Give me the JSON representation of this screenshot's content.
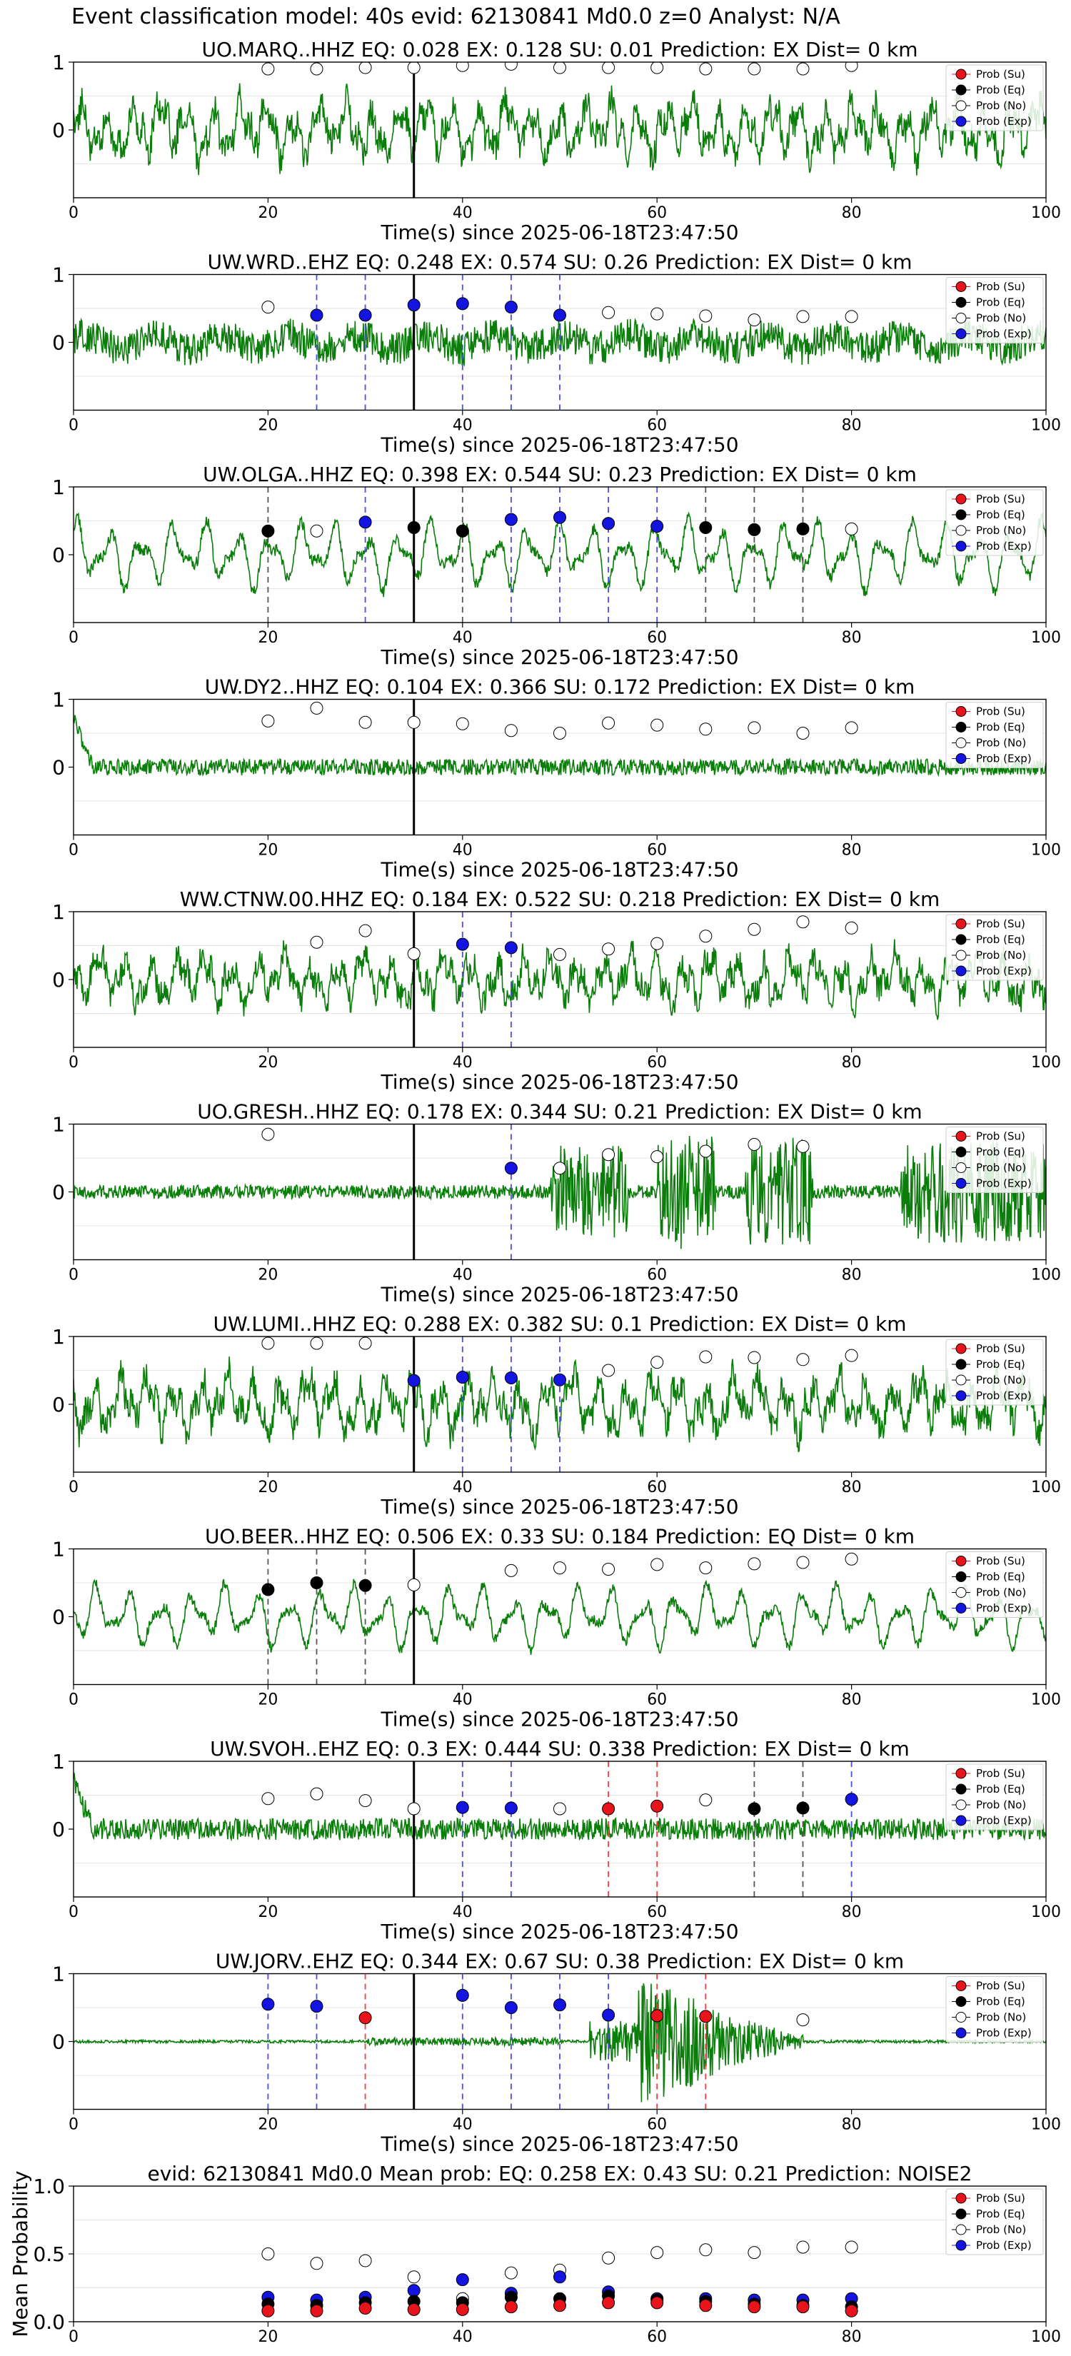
{
  "figure": {
    "suptitle": "Event classification model: 40s evid: 62130841 Md0.0 z=0 Analyst: N/A",
    "legend_entries": [
      {
        "label": "Prob (Su)",
        "color": "#e8141c"
      },
      {
        "label": "Prob (Eq)",
        "color": "#000000"
      },
      {
        "label": "Prob (No)",
        "color": "#ffffff"
      },
      {
        "label": "Prob (Exp)",
        "color": "#1414e0"
      }
    ],
    "colors": {
      "waveform": "#0a7d0a",
      "su": "#e8141c",
      "eq": "#000000",
      "no": "#ffffff",
      "exp": "#1414e0",
      "exp_line": "#4b4bf0",
      "su_line": "#f04040",
      "eq_line": "#555555",
      "event_line": "#000000"
    }
  },
  "chart_data": [
    {
      "type": "line",
      "title": "UO.MARQ..HHZ   EQ: 0.028  EX: 0.128  SU: 0.01   Prediction: EX    Dist= 0 km",
      "xlabel": "Time(s) since 2025-06-18T23:47:50",
      "xlim": [
        0,
        100
      ],
      "ylim": [
        -1,
        1
      ],
      "xticks": [
        0,
        20,
        40,
        60,
        80,
        100
      ],
      "yticks": [
        0,
        1
      ],
      "event_time": 35,
      "grid": true,
      "legend": "upper right",
      "waveform": {
        "style": "broadband",
        "amplitude": 0.45
      },
      "predictions": [
        {
          "t": 20,
          "class": "No",
          "prob": 0.9
        },
        {
          "t": 25,
          "class": "No",
          "prob": 0.9
        },
        {
          "t": 30,
          "class": "No",
          "prob": 0.92
        },
        {
          "t": 35,
          "class": "No",
          "prob": 0.92
        },
        {
          "t": 40,
          "class": "No",
          "prob": 0.95
        },
        {
          "t": 45,
          "class": "No",
          "prob": 0.97
        },
        {
          "t": 50,
          "class": "No",
          "prob": 0.92
        },
        {
          "t": 55,
          "class": "No",
          "prob": 0.92
        },
        {
          "t": 60,
          "class": "No",
          "prob": 0.92
        },
        {
          "t": 65,
          "class": "No",
          "prob": 0.9
        },
        {
          "t": 70,
          "class": "No",
          "prob": 0.9
        },
        {
          "t": 75,
          "class": "No",
          "prob": 0.9
        },
        {
          "t": 80,
          "class": "No",
          "prob": 0.95
        }
      ]
    },
    {
      "type": "line",
      "title": "UW.WRD..EHZ   EQ: 0.248  EX: 0.574  SU: 0.26   Prediction: EX    Dist= 0 km",
      "xlabel": "Time(s) since 2025-06-18T23:47:50",
      "xlim": [
        0,
        100
      ],
      "ylim": [
        -1,
        1
      ],
      "xticks": [
        0,
        20,
        40,
        60,
        80,
        100
      ],
      "yticks": [
        0,
        1
      ],
      "event_time": 35,
      "grid": true,
      "legend": "upper right",
      "waveform": {
        "style": "noise",
        "amplitude": 0.25
      },
      "predictions": [
        {
          "t": 20,
          "class": "No",
          "prob": 0.52
        },
        {
          "t": 25,
          "class": "Exp",
          "prob": 0.4
        },
        {
          "t": 30,
          "class": "Exp",
          "prob": 0.4
        },
        {
          "t": 35,
          "class": "Exp",
          "prob": 0.55
        },
        {
          "t": 40,
          "class": "Exp",
          "prob": 0.57
        },
        {
          "t": 45,
          "class": "Exp",
          "prob": 0.52
        },
        {
          "t": 50,
          "class": "Exp",
          "prob": 0.4
        },
        {
          "t": 55,
          "class": "No",
          "prob": 0.44
        },
        {
          "t": 60,
          "class": "No",
          "prob": 0.42
        },
        {
          "t": 65,
          "class": "No",
          "prob": 0.39
        },
        {
          "t": 70,
          "class": "No",
          "prob": 0.33
        },
        {
          "t": 75,
          "class": "No",
          "prob": 0.38
        },
        {
          "t": 80,
          "class": "No",
          "prob": 0.38
        }
      ]
    },
    {
      "type": "line",
      "title": "UW.OLGA..HHZ   EQ: 0.398  EX: 0.544  SU: 0.23   Prediction: EX    Dist= 0 km",
      "xlabel": "Time(s) since 2025-06-18T23:47:50",
      "xlim": [
        0,
        100
      ],
      "ylim": [
        -1,
        1
      ],
      "xticks": [
        0,
        20,
        40,
        60,
        80,
        100
      ],
      "yticks": [
        0,
        1
      ],
      "event_time": 35,
      "grid": true,
      "legend": "upper right",
      "waveform": {
        "style": "lowfreq",
        "amplitude": 0.5
      },
      "predictions": [
        {
          "t": 20,
          "class": "Eq",
          "prob": 0.35
        },
        {
          "t": 25,
          "class": "No",
          "prob": 0.35
        },
        {
          "t": 30,
          "class": "Exp",
          "prob": 0.48
        },
        {
          "t": 35,
          "class": "Eq",
          "prob": 0.4
        },
        {
          "t": 40,
          "class": "Eq",
          "prob": 0.35
        },
        {
          "t": 45,
          "class": "Exp",
          "prob": 0.52
        },
        {
          "t": 50,
          "class": "Exp",
          "prob": 0.55
        },
        {
          "t": 55,
          "class": "Exp",
          "prob": 0.46
        },
        {
          "t": 60,
          "class": "Exp",
          "prob": 0.42
        },
        {
          "t": 65,
          "class": "Eq",
          "prob": 0.4
        },
        {
          "t": 70,
          "class": "Eq",
          "prob": 0.37
        },
        {
          "t": 75,
          "class": "Eq",
          "prob": 0.38
        },
        {
          "t": 80,
          "class": "No",
          "prob": 0.38
        }
      ]
    },
    {
      "type": "line",
      "title": "UW.DY2..HHZ   EQ: 0.104  EX: 0.366  SU: 0.172   Prediction: EX    Dist= 0 km",
      "xlabel": "Time(s) since 2025-06-18T23:47:50",
      "xlim": [
        0,
        100
      ],
      "ylim": [
        -1,
        1
      ],
      "xticks": [
        0,
        20,
        40,
        60,
        80,
        100
      ],
      "yticks": [
        0,
        1
      ],
      "event_time": 35,
      "grid": true,
      "legend": "upper right",
      "waveform": {
        "style": "quiet",
        "amplitude": 0.12
      },
      "predictions": [
        {
          "t": 20,
          "class": "No",
          "prob": 0.68
        },
        {
          "t": 25,
          "class": "No",
          "prob": 0.87
        },
        {
          "t": 30,
          "class": "No",
          "prob": 0.66
        },
        {
          "t": 35,
          "class": "No",
          "prob": 0.66
        },
        {
          "t": 40,
          "class": "No",
          "prob": 0.64
        },
        {
          "t": 45,
          "class": "No",
          "prob": 0.54
        },
        {
          "t": 50,
          "class": "No",
          "prob": 0.5
        },
        {
          "t": 55,
          "class": "No",
          "prob": 0.65
        },
        {
          "t": 60,
          "class": "No",
          "prob": 0.62
        },
        {
          "t": 65,
          "class": "No",
          "prob": 0.56
        },
        {
          "t": 70,
          "class": "No",
          "prob": 0.58
        },
        {
          "t": 75,
          "class": "No",
          "prob": 0.5
        },
        {
          "t": 80,
          "class": "No",
          "prob": 0.58
        }
      ]
    },
    {
      "type": "line",
      "title": "WW.CTNW.00.HHZ   EQ: 0.184  EX: 0.522  SU: 0.218   Prediction: EX    Dist= 0 km",
      "xlabel": "Time(s) since 2025-06-18T23:47:50",
      "xlim": [
        0,
        100
      ],
      "ylim": [
        -1,
        1
      ],
      "xticks": [
        0,
        20,
        40,
        60,
        80,
        100
      ],
      "yticks": [
        0,
        1
      ],
      "event_time": 35,
      "grid": true,
      "legend": "upper right",
      "waveform": {
        "style": "broadband",
        "amplitude": 0.4
      },
      "predictions": [
        {
          "t": 25,
          "class": "No",
          "prob": 0.55
        },
        {
          "t": 30,
          "class": "No",
          "prob": 0.72
        },
        {
          "t": 35,
          "class": "No",
          "prob": 0.38
        },
        {
          "t": 40,
          "class": "Exp",
          "prob": 0.52
        },
        {
          "t": 45,
          "class": "Exp",
          "prob": 0.47
        },
        {
          "t": 50,
          "class": "No",
          "prob": 0.37
        },
        {
          "t": 55,
          "class": "No",
          "prob": 0.45
        },
        {
          "t": 60,
          "class": "No",
          "prob": 0.53
        },
        {
          "t": 65,
          "class": "No",
          "prob": 0.64
        },
        {
          "t": 70,
          "class": "No",
          "prob": 0.74
        },
        {
          "t": 75,
          "class": "No",
          "prob": 0.85
        },
        {
          "t": 80,
          "class": "No",
          "prob": 0.76
        }
      ]
    },
    {
      "type": "line",
      "title": "UO.GRESH..HHZ   EQ: 0.178  EX: 0.344  SU: 0.21   Prediction: EX    Dist= 0 km",
      "xlabel": "Time(s) since 2025-06-18T23:47:50",
      "xlim": [
        0,
        100
      ],
      "ylim": [
        -1,
        1
      ],
      "xticks": [
        0,
        20,
        40,
        60,
        80,
        100
      ],
      "yticks": [
        0,
        1
      ],
      "event_time": 35,
      "grid": true,
      "legend": "upper right",
      "waveform": {
        "style": "bursts",
        "amplitude": 0.1
      },
      "predictions": [
        {
          "t": 20,
          "class": "No",
          "prob": 0.85
        },
        {
          "t": 45,
          "class": "Exp",
          "prob": 0.35
        },
        {
          "t": 50,
          "class": "No",
          "prob": 0.35
        },
        {
          "t": 55,
          "class": "No",
          "prob": 0.55
        },
        {
          "t": 60,
          "class": "No",
          "prob": 0.52
        },
        {
          "t": 65,
          "class": "No",
          "prob": 0.6
        },
        {
          "t": 70,
          "class": "No",
          "prob": 0.7
        },
        {
          "t": 75,
          "class": "No",
          "prob": 0.67
        }
      ]
    },
    {
      "type": "line",
      "title": "UW.LUMI..HHZ   EQ: 0.288  EX: 0.382  SU: 0.1   Prediction: EX    Dist= 0 km",
      "xlabel": "Time(s) since 2025-06-18T23:47:50",
      "xlim": [
        0,
        100
      ],
      "ylim": [
        -1,
        1
      ],
      "xticks": [
        0,
        20,
        40,
        60,
        80,
        100
      ],
      "yticks": [
        0,
        1
      ],
      "event_time": 35,
      "grid": true,
      "legend": "upper right",
      "waveform": {
        "style": "broadband",
        "amplitude": 0.45
      },
      "predictions": [
        {
          "t": 20,
          "class": "No",
          "prob": 0.9
        },
        {
          "t": 25,
          "class": "No",
          "prob": 0.9
        },
        {
          "t": 30,
          "class": "No",
          "prob": 0.9
        },
        {
          "t": 35,
          "class": "Exp",
          "prob": 0.35
        },
        {
          "t": 40,
          "class": "Exp",
          "prob": 0.4
        },
        {
          "t": 45,
          "class": "Exp",
          "prob": 0.39
        },
        {
          "t": 50,
          "class": "Exp",
          "prob": 0.36
        },
        {
          "t": 55,
          "class": "No",
          "prob": 0.5
        },
        {
          "t": 60,
          "class": "No",
          "prob": 0.62
        },
        {
          "t": 65,
          "class": "No",
          "prob": 0.7
        },
        {
          "t": 70,
          "class": "No",
          "prob": 0.69
        },
        {
          "t": 75,
          "class": "No",
          "prob": 0.66
        },
        {
          "t": 80,
          "class": "No",
          "prob": 0.72
        }
      ]
    },
    {
      "type": "line",
      "title": "UO.BEER..HHZ   EQ: 0.506  EX: 0.33  SU: 0.184   Prediction: EQ    Dist= 0 km",
      "xlabel": "Time(s) since 2025-06-18T23:47:50",
      "xlim": [
        0,
        100
      ],
      "ylim": [
        -1,
        1
      ],
      "xticks": [
        0,
        20,
        40,
        60,
        80,
        100
      ],
      "yticks": [
        0,
        1
      ],
      "event_time": 35,
      "grid": true,
      "legend": "upper right",
      "waveform": {
        "style": "lowfreq",
        "amplitude": 0.45
      },
      "predictions": [
        {
          "t": 20,
          "class": "Eq",
          "prob": 0.4
        },
        {
          "t": 25,
          "class": "Eq",
          "prob": 0.5
        },
        {
          "t": 30,
          "class": "Eq",
          "prob": 0.46
        },
        {
          "t": 35,
          "class": "No",
          "prob": 0.47
        },
        {
          "t": 45,
          "class": "No",
          "prob": 0.68
        },
        {
          "t": 50,
          "class": "No",
          "prob": 0.72
        },
        {
          "t": 55,
          "class": "No",
          "prob": 0.7
        },
        {
          "t": 60,
          "class": "No",
          "prob": 0.77
        },
        {
          "t": 65,
          "class": "No",
          "prob": 0.72
        },
        {
          "t": 70,
          "class": "No",
          "prob": 0.78
        },
        {
          "t": 75,
          "class": "No",
          "prob": 0.8
        },
        {
          "t": 80,
          "class": "No",
          "prob": 0.85
        }
      ]
    },
    {
      "type": "line",
      "title": "UW.SVOH..EHZ   EQ: 0.3  EX: 0.444  SU: 0.338   Prediction: EX    Dist= 0 km",
      "xlabel": "Time(s) since 2025-06-18T23:47:50",
      "xlim": [
        0,
        100
      ],
      "ylim": [
        -1,
        1
      ],
      "xticks": [
        0,
        20,
        40,
        60,
        80,
        100
      ],
      "yticks": [
        0,
        1
      ],
      "event_time": 35,
      "grid": true,
      "legend": "upper right",
      "waveform": {
        "style": "quiet",
        "amplitude": 0.16
      },
      "predictions": [
        {
          "t": 20,
          "class": "No",
          "prob": 0.45
        },
        {
          "t": 25,
          "class": "No",
          "prob": 0.52
        },
        {
          "t": 30,
          "class": "No",
          "prob": 0.42
        },
        {
          "t": 35,
          "class": "No",
          "prob": 0.3
        },
        {
          "t": 40,
          "class": "Exp",
          "prob": 0.32
        },
        {
          "t": 45,
          "class": "Exp",
          "prob": 0.31
        },
        {
          "t": 50,
          "class": "No",
          "prob": 0.3
        },
        {
          "t": 55,
          "class": "Su",
          "prob": 0.3
        },
        {
          "t": 60,
          "class": "Su",
          "prob": 0.34
        },
        {
          "t": 65,
          "class": "No",
          "prob": 0.43
        },
        {
          "t": 70,
          "class": "Eq",
          "prob": 0.3
        },
        {
          "t": 75,
          "class": "Eq",
          "prob": 0.31
        },
        {
          "t": 80,
          "class": "Exp",
          "prob": 0.44
        }
      ]
    },
    {
      "type": "line",
      "title": "UW.JORV..EHZ   EQ: 0.344  EX: 0.67  SU: 0.38   Prediction: EX    Dist= 0 km",
      "xlabel": "Time(s) since 2025-06-18T23:47:50",
      "xlim": [
        0,
        100
      ],
      "ylim": [
        -1,
        1
      ],
      "xticks": [
        0,
        20,
        40,
        60,
        80,
        100
      ],
      "yticks": [
        0,
        1
      ],
      "event_time": 35,
      "grid": true,
      "legend": "upper right",
      "waveform": {
        "style": "event",
        "amplitude": 0.02
      },
      "predictions": [
        {
          "t": 20,
          "class": "Exp",
          "prob": 0.55
        },
        {
          "t": 25,
          "class": "Exp",
          "prob": 0.52
        },
        {
          "t": 30,
          "class": "Su",
          "prob": 0.35
        },
        {
          "t": 40,
          "class": "Exp",
          "prob": 0.68
        },
        {
          "t": 45,
          "class": "Exp",
          "prob": 0.5
        },
        {
          "t": 50,
          "class": "Exp",
          "prob": 0.54
        },
        {
          "t": 55,
          "class": "Exp",
          "prob": 0.39
        },
        {
          "t": 60,
          "class": "Su",
          "prob": 0.38
        },
        {
          "t": 65,
          "class": "Su",
          "prob": 0.37
        },
        {
          "t": 75,
          "class": "No",
          "prob": 0.32
        }
      ]
    },
    {
      "type": "scatter",
      "title": "evid: 62130841  Md0.0   Mean prob:   EQ: 0.258  EX: 0.43  SU: 0.21   Prediction: NOISE2",
      "xlabel": "",
      "ylabel": "Mean Probability",
      "xlim": [
        0,
        100
      ],
      "ylim": [
        0,
        1
      ],
      "xticks": [
        0,
        20,
        40,
        60,
        80,
        100
      ],
      "yticks": [
        0.0,
        0.5,
        1.0
      ],
      "ytick_labels": [
        "0.0",
        "0.5",
        "1.0"
      ],
      "grid": true,
      "legend": "upper right",
      "x": [
        20,
        25,
        30,
        35,
        40,
        45,
        50,
        55,
        60,
        65,
        70,
        75,
        80
      ],
      "series": [
        {
          "name": "Prob (No)",
          "class": "No",
          "values": [
            0.5,
            0.43,
            0.45,
            0.33,
            0.17,
            0.36,
            0.38,
            0.47,
            0.51,
            0.53,
            0.51,
            0.55,
            0.55
          ]
        },
        {
          "name": "Prob (Exp)",
          "class": "Exp",
          "values": [
            0.18,
            0.16,
            0.18,
            0.23,
            0.31,
            0.21,
            0.33,
            0.22,
            0.17,
            0.17,
            0.16,
            0.16,
            0.17
          ]
        },
        {
          "name": "Prob (Eq)",
          "class": "Eq",
          "values": [
            0.13,
            0.12,
            0.14,
            0.15,
            0.14,
            0.18,
            0.17,
            0.19,
            0.16,
            0.15,
            0.13,
            0.12,
            0.11
          ]
        },
        {
          "name": "Prob (Su)",
          "class": "Su",
          "values": [
            0.08,
            0.08,
            0.1,
            0.09,
            0.09,
            0.11,
            0.12,
            0.14,
            0.14,
            0.12,
            0.11,
            0.11,
            0.08
          ]
        }
      ]
    }
  ]
}
